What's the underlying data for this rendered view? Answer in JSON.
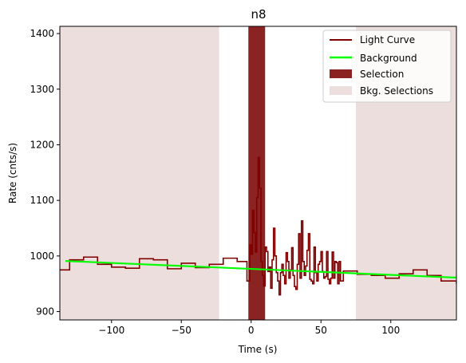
{
  "chart_data": {
    "type": "line",
    "title": "n8",
    "xlabel": "Time (s)",
    "ylabel": "Rate (cnts/s)",
    "xlim": [
      -137,
      147
    ],
    "ylim": [
      885,
      1413
    ],
    "x_ticks": [
      -100,
      -50,
      0,
      50,
      100
    ],
    "y_ticks": [
      900,
      1000,
      1100,
      1200,
      1300,
      1400
    ],
    "grid": false,
    "legend_position": "upper right",
    "series": [
      {
        "name": "Light Curve",
        "color": "#800000",
        "style": "step",
        "x": [
          -137,
          -130,
          -120,
          -110,
          -100,
          -90,
          -80,
          -70,
          -60,
          -50,
          -40,
          -30,
          -20,
          -10,
          -3,
          -1,
          0,
          1,
          2,
          3,
          4,
          5,
          6,
          7,
          8,
          9,
          10,
          11,
          12,
          13,
          14,
          15,
          16,
          17,
          18,
          19,
          20,
          21,
          22,
          23,
          24,
          25,
          26,
          27,
          28,
          29,
          30,
          31,
          32,
          33,
          34,
          35,
          36,
          37,
          38,
          39,
          40,
          41,
          42,
          43,
          44,
          45,
          46,
          47,
          48,
          49,
          50,
          51,
          52,
          53,
          54,
          55,
          56,
          57,
          58,
          59,
          60,
          61,
          62,
          63,
          64,
          66,
          76,
          86,
          96,
          106,
          116,
          126,
          136,
          147
        ],
        "y": [
          975,
          993,
          998,
          985,
          980,
          978,
          995,
          993,
          977,
          987,
          979,
          985,
          996,
          990,
          955,
          1020,
          1003,
          1082,
          1042,
          1007,
          1105,
          1177,
          1122,
          990,
          965,
          946,
          1016,
          1008,
          972,
          980,
          942,
          993,
          1050,
          1000,
          970,
          955,
          930,
          970,
          985,
          965,
          950,
          1006,
          990,
          960,
          975,
          1015,
          965,
          945,
          940,
          985,
          1040,
          960,
          1063,
          990,
          965,
          982,
          1010,
          1040,
          958,
          955,
          950,
          1016,
          970,
          955,
          985,
          990,
          1008,
          972,
          960,
          963,
          1008,
          958,
          950,
          960,
          1007,
          960,
          990,
          988,
          950,
          990,
          955,
          973,
          967,
          965,
          960,
          968,
          975,
          965,
          955,
          950
        ]
      },
      {
        "name": "Background",
        "color": "#00ff00",
        "style": "line",
        "x": [
          -133,
          147
        ],
        "y": [
          991,
          961
        ]
      }
    ],
    "selection": {
      "name": "Selection",
      "color": "#8b2323",
      "ranges": [
        [
          -2,
          10
        ]
      ]
    },
    "bkg_selections": {
      "name": "Bkg. Selections",
      "color": "#eddede",
      "ranges": [
        [
          -137,
          -23
        ],
        [
          75,
          147
        ]
      ]
    }
  }
}
